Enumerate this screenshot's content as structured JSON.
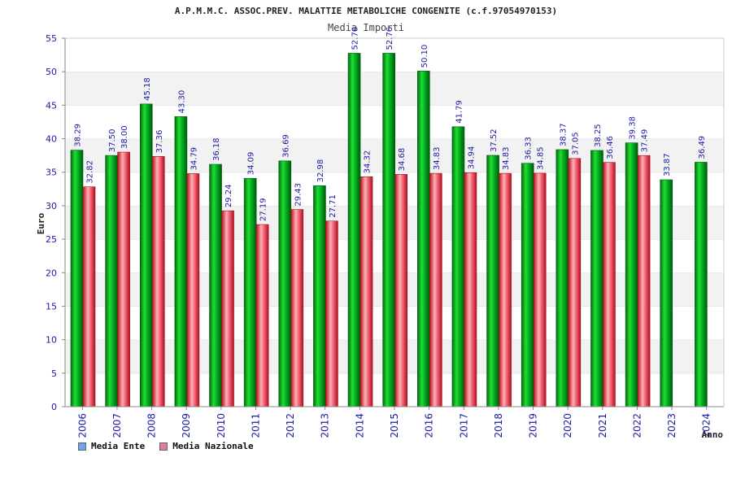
{
  "colors": {
    "ente": "#00b020",
    "nazionale": "#e23a48",
    "legend_ente": "#6aa6e8",
    "legend_nazionale": "#e07aa0",
    "band": "#f2f2f2",
    "axis_text": "#1a1aa6"
  },
  "chart_data": {
    "type": "bar",
    "title": "A.P.M.M.C. ASSOC.PREV. MALATTIE METABOLICHE CONGENITE (c.f.97054970153)",
    "subtitle": "Media Importi",
    "ylabel": "Euro",
    "xlabel": "Anno",
    "ylim": [
      0,
      55
    ],
    "yticks": [
      0,
      5,
      10,
      15,
      20,
      25,
      30,
      35,
      40,
      45,
      50,
      55
    ],
    "grid": "horizontal bands",
    "legend_position": "bottom-left",
    "categories": [
      "2006",
      "2007",
      "2008",
      "2009",
      "2010",
      "2011",
      "2012",
      "2013",
      "2014",
      "2015",
      "2016",
      "2017",
      "2018",
      "2019",
      "2020",
      "2021",
      "2022",
      "2023",
      "2024"
    ],
    "series": [
      {
        "name": "Media Ente",
        "values": [
          38.29,
          37.5,
          45.18,
          43.3,
          36.18,
          34.09,
          36.69,
          32.98,
          52.76,
          52.76,
          50.1,
          41.79,
          37.52,
          36.33,
          38.37,
          38.25,
          39.38,
          33.87,
          36.49
        ],
        "labels": [
          "38.29",
          "37.50",
          "45.18",
          "43.30",
          "36.18",
          "34.09",
          "36.69",
          "32.98",
          "52.76",
          "52.76",
          "50.10",
          "41.79",
          "37.52",
          "36.33",
          "38.37",
          "38.25",
          "39.38",
          "33.87",
          "36.49"
        ]
      },
      {
        "name": "Media Nazionale",
        "values": [
          32.82,
          38.0,
          37.36,
          34.79,
          29.24,
          27.19,
          29.43,
          27.71,
          34.32,
          34.68,
          34.83,
          34.94,
          34.83,
          34.85,
          37.05,
          36.46,
          37.49,
          null,
          null
        ],
        "labels": [
          "32.82",
          "38.00",
          "37.36",
          "34.79",
          "29.24",
          "27.19",
          "29.43",
          "27.71",
          "34.32",
          "34.68",
          "34.83",
          "34.94",
          "34.83",
          "34.85",
          "37.05",
          "36.46",
          "37.49",
          null,
          null
        ]
      }
    ]
  }
}
